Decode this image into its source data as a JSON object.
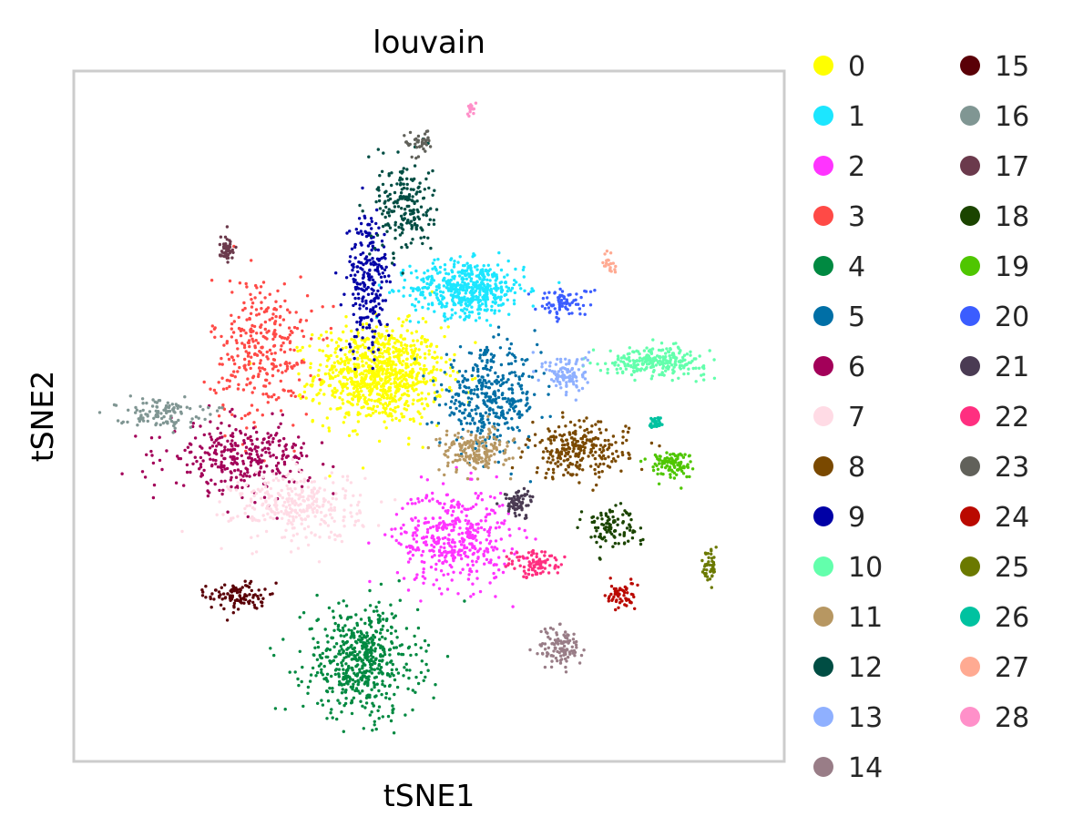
{
  "chart_data": {
    "type": "scatter",
    "title": "louvain",
    "xlabel": "tSNE1",
    "ylabel": "tSNE2",
    "grid": false,
    "ticks": "none",
    "legend_placement": "right, outside plot, two columns",
    "xlim": [
      -1,
      1
    ],
    "ylim": [
      -1,
      1
    ],
    "clusters": [
      {
        "name": "0",
        "color": "#ffff00",
        "n": 900,
        "spread": [
          0.09,
          0.07
        ],
        "center": [
          -0.14,
          0.12
        ]
      },
      {
        "name": "1",
        "color": "#1ce6ff",
        "n": 500,
        "spread": [
          0.08,
          0.04
        ],
        "center": [
          0.11,
          0.37
        ]
      },
      {
        "name": "2",
        "color": "#ff34ff",
        "n": 420,
        "spread": [
          0.08,
          0.07
        ],
        "center": [
          0.07,
          -0.35
        ]
      },
      {
        "name": "3",
        "color": "#ff4a46",
        "n": 320,
        "spread": [
          0.07,
          0.11
        ],
        "center": [
          -0.47,
          0.19
        ]
      },
      {
        "name": "4",
        "color": "#008941",
        "n": 550,
        "spread": [
          0.08,
          0.08
        ],
        "center": [
          -0.19,
          -0.71
        ]
      },
      {
        "name": "5",
        "color": "#006fa6",
        "n": 380,
        "spread": [
          0.07,
          0.07
        ],
        "center": [
          0.17,
          0.05
        ]
      },
      {
        "name": "6",
        "color": "#a30059",
        "n": 320,
        "spread": [
          0.1,
          0.05
        ],
        "center": [
          -0.53,
          -0.12
        ]
      },
      {
        "name": "7",
        "color": "#ffdbe5",
        "n": 320,
        "spread": [
          0.09,
          0.05
        ],
        "center": [
          -0.37,
          -0.26
        ]
      },
      {
        "name": "8",
        "color": "#7a4900",
        "n": 260,
        "spread": [
          0.07,
          0.04
        ],
        "center": [
          0.42,
          -0.1
        ]
      },
      {
        "name": "9",
        "color": "#0000a6",
        "n": 240,
        "spread": [
          0.03,
          0.1
        ],
        "center": [
          -0.17,
          0.39
        ]
      },
      {
        "name": "10",
        "color": "#63ffac",
        "n": 260,
        "spread": [
          0.07,
          0.02
        ],
        "center": [
          0.64,
          0.16
        ]
      },
      {
        "name": "11",
        "color": "#b79762",
        "n": 180,
        "spread": [
          0.05,
          0.03
        ],
        "center": [
          0.13,
          -0.1
        ]
      },
      {
        "name": "12",
        "color": "#004d43",
        "n": 200,
        "spread": [
          0.04,
          0.07
        ],
        "center": [
          -0.07,
          0.61
        ]
      },
      {
        "name": "13",
        "color": "#8fb0ff",
        "n": 110,
        "spread": [
          0.03,
          0.03
        ],
        "center": [
          0.39,
          0.12
        ]
      },
      {
        "name": "14",
        "color": "#997d87",
        "n": 110,
        "spread": [
          0.03,
          0.03
        ],
        "center": [
          0.37,
          -0.67
        ]
      },
      {
        "name": "15",
        "color": "#5a0007",
        "n": 110,
        "spread": [
          0.04,
          0.02
        ],
        "center": [
          -0.54,
          -0.52
        ]
      },
      {
        "name": "16",
        "color": "#809693",
        "n": 110,
        "spread": [
          0.06,
          0.02
        ],
        "center": [
          -0.76,
          0.01
        ]
      },
      {
        "name": "17",
        "color": "#6b3a4c",
        "n": 50,
        "spread": [
          0.01,
          0.02
        ],
        "center": [
          -0.57,
          0.49
        ]
      },
      {
        "name": "18",
        "color": "#1b4400",
        "n": 100,
        "spread": [
          0.04,
          0.03
        ],
        "center": [
          0.51,
          -0.32
        ]
      },
      {
        "name": "19",
        "color": "#4fc601",
        "n": 110,
        "spread": [
          0.03,
          0.02
        ],
        "center": [
          0.68,
          -0.14
        ]
      },
      {
        "name": "20",
        "color": "#3b5dff",
        "n": 80,
        "spread": [
          0.04,
          0.02
        ],
        "center": [
          0.38,
          0.33
        ]
      },
      {
        "name": "21",
        "color": "#4a3b53",
        "n": 70,
        "spread": [
          0.02,
          0.02
        ],
        "center": [
          0.25,
          -0.25
        ]
      },
      {
        "name": "22",
        "color": "#ff2f80",
        "n": 90,
        "spread": [
          0.04,
          0.02
        ],
        "center": [
          0.3,
          -0.43
        ]
      },
      {
        "name": "23",
        "color": "#61615a",
        "n": 40,
        "spread": [
          0.02,
          0.02
        ],
        "center": [
          -0.03,
          0.79
        ]
      },
      {
        "name": "24",
        "color": "#ba0900",
        "n": 60,
        "spread": [
          0.02,
          0.02
        ],
        "center": [
          0.54,
          -0.52
        ]
      },
      {
        "name": "25",
        "color": "#6b7900",
        "n": 40,
        "spread": [
          0.01,
          0.03
        ],
        "center": [
          0.79,
          -0.43
        ]
      },
      {
        "name": "26",
        "color": "#00c2a0",
        "n": 40,
        "spread": [
          0.01,
          0.01
        ],
        "center": [
          0.64,
          -0.02
        ]
      },
      {
        "name": "27",
        "color": "#ffaa92",
        "n": 20,
        "spread": [
          0.01,
          0.02
        ],
        "center": [
          0.51,
          0.44
        ]
      },
      {
        "name": "28",
        "color": "#ff90c9",
        "n": 15,
        "spread": [
          0.005,
          0.008
        ],
        "center": [
          0.12,
          0.89
        ]
      }
    ]
  }
}
